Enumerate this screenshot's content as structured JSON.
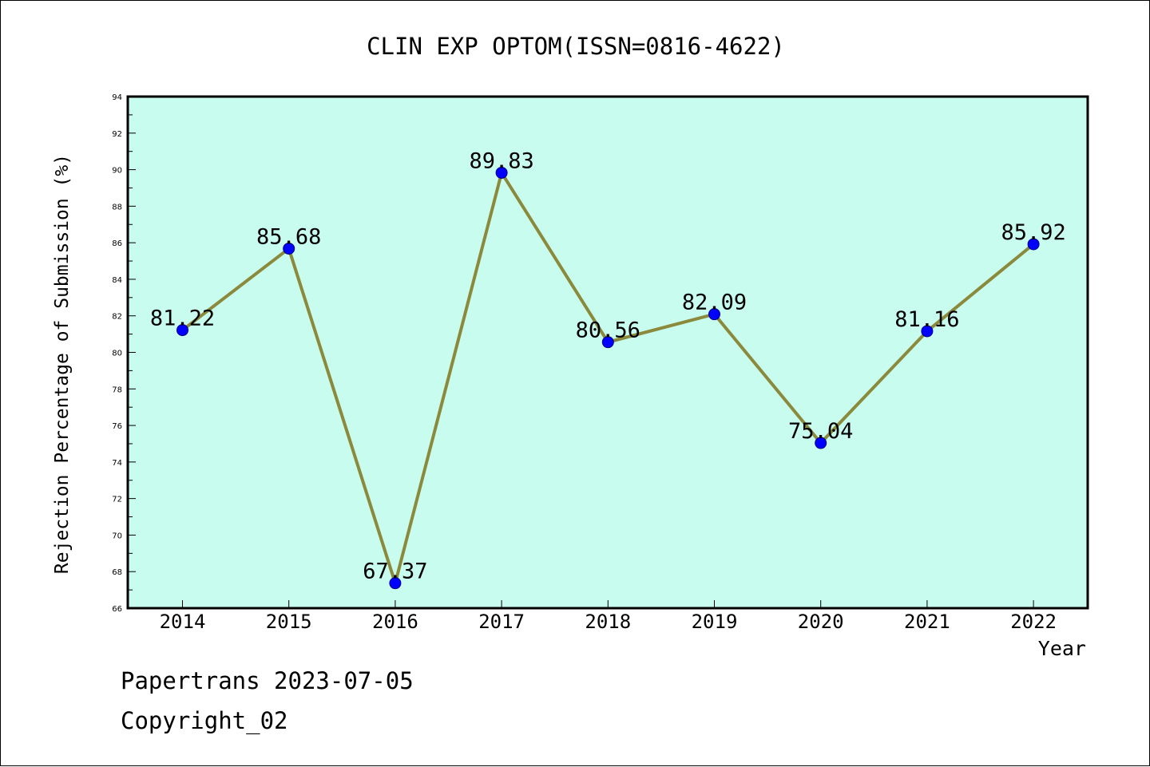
{
  "chart_data": {
    "type": "line",
    "title": "CLIN EXP OPTOM(ISSN=0816-4622)",
    "xlabel": "Year",
    "ylabel": "Rejection Percentage of Submission (%)",
    "categories": [
      "2014",
      "2015",
      "2016",
      "2017",
      "2018",
      "2019",
      "2020",
      "2021",
      "2022"
    ],
    "values": [
      81.22,
      85.68,
      67.37,
      89.83,
      80.56,
      82.09,
      75.04,
      81.16,
      85.92
    ],
    "value_labels": [
      "81.22",
      "85.68",
      "67.37",
      "89.83",
      "80.56",
      "82.09",
      "75.04",
      "81.16",
      "85.92"
    ],
    "ylim": [
      66,
      94
    ],
    "ytick_step": 2,
    "grid": false,
    "legend": "none"
  },
  "colors": {
    "plot_background": "#c8fcee",
    "line": "#8b8a3c",
    "marker": "#0000ff",
    "axis": "#000000"
  },
  "footer": {
    "line1": "Papertrans 2023-07-05",
    "line2": "Copyright_02"
  }
}
